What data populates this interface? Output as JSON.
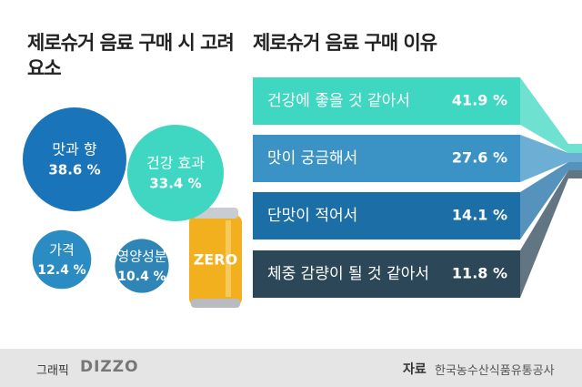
{
  "chart_data": [
    {
      "type": "bubble",
      "title": "제로슈거 음료 구매 시 고려 요소",
      "categories": [
        "맛과 향",
        "건강 효과",
        "가격",
        "영양성분"
      ],
      "values": [
        38.6,
        33.4,
        12.4,
        10.4
      ],
      "value_labels": [
        "38.6 %",
        "33.4 %",
        "12.4 %",
        "10.4 %"
      ],
      "colors": [
        "#1a74b9",
        "#3fd7c2",
        "#2a8cc3",
        "#2f86b6"
      ],
      "can_label": "ZERO"
    },
    {
      "type": "funnel",
      "title": "제로슈거 음료 구매 이유",
      "categories": [
        "건강에 좋을 것 같아서",
        "맛이 궁금해서",
        "단맛이 적어서",
        "체중 감량이 될 것 같아서"
      ],
      "values": [
        41.9,
        27.6,
        14.1,
        11.8
      ],
      "value_labels": [
        "41.9 %",
        "27.6 %",
        "14.1 %",
        "11.8 %"
      ],
      "colors": [
        "#3fd7c2",
        "#3b93c5",
        "#1c6ea6",
        "#2c4858"
      ]
    }
  ],
  "footer": {
    "graphic_label": "그래픽",
    "graphic_credit": "DIZZO",
    "source_label": "자료",
    "source": "한국농수산식품유통공사"
  }
}
